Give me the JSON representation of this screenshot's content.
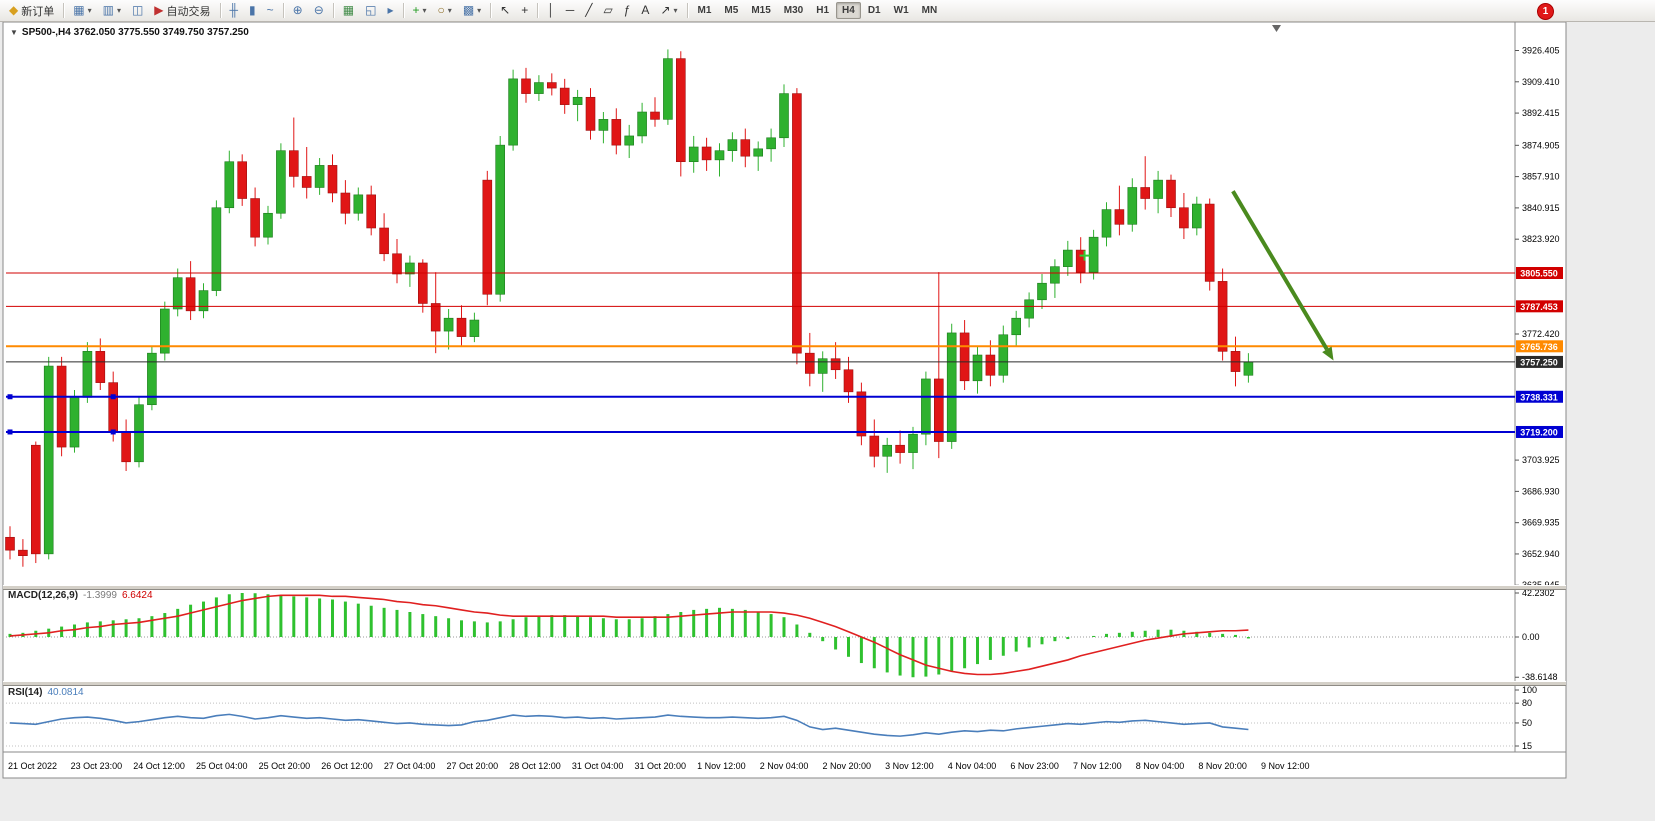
{
  "toolbar": {
    "new_order_label": "新订单",
    "autotrading_label": "自动交易",
    "timeframes": [
      "M1",
      "M5",
      "M15",
      "M30",
      "H1",
      "H4",
      "D1",
      "W1",
      "MN"
    ],
    "active_timeframe": "H4",
    "notification_badge": "1",
    "items": [
      {
        "name": "new-order-button",
        "glyph": "◆",
        "color": "#d8a020",
        "label_key": "new_order_label"
      },
      {
        "sep": true
      },
      {
        "name": "new-chart-button",
        "glyph": "▦",
        "color": "#4a74a8",
        "dd": true
      },
      {
        "name": "profiles-button",
        "glyph": "▥",
        "color": "#4a74a8",
        "dd": true
      },
      {
        "name": "data-window-button",
        "glyph": "◫",
        "color": "#4a74a8"
      },
      {
        "name": "autotrading-button",
        "glyph": "▶",
        "color": "#c03030",
        "label_key": "autotrading_label"
      },
      {
        "sep": true
      },
      {
        "name": "bar-chart-type-button",
        "glyph": "╫",
        "color": "#4a74a8"
      },
      {
        "name": "candle-chart-type-button",
        "glyph": "▮",
        "color": "#4a74a8"
      },
      {
        "name": "line-chart-type-button",
        "glyph": "~",
        "color": "#4a74a8"
      },
      {
        "sep": true
      },
      {
        "name": "zoom-in-button",
        "glyph": "⊕",
        "color": "#4a74a8"
      },
      {
        "name": "zoom-out-button",
        "glyph": "⊖",
        "color": "#4a74a8"
      },
      {
        "sep": true
      },
      {
        "name": "tile-windows-button",
        "glyph": "▦",
        "color": "#3f8a46"
      },
      {
        "name": "cascade-windows-button",
        "glyph": "◱",
        "color": "#4a74a8"
      },
      {
        "name": "chart-shift-button",
        "glyph": "▸",
        "color": "#4a74a8"
      },
      {
        "sep": true
      },
      {
        "name": "indicators-button",
        "glyph": "+",
        "color": "#1f9a1f",
        "dd": true
      },
      {
        "name": "periods-button",
        "glyph": "○",
        "color": "#8a6a22",
        "dd": true
      },
      {
        "name": "templates-button",
        "glyph": "▩",
        "color": "#4a74a8",
        "dd": true
      },
      {
        "sep": true
      },
      {
        "name": "cursor-button",
        "glyph": "↖",
        "color": "#333333"
      },
      {
        "name": "crosshair-button",
        "glyph": "+",
        "color": "#333333"
      },
      {
        "sep": true
      },
      {
        "name": "vertical-line-button",
        "glyph": "│",
        "color": "#333333"
      },
      {
        "name": "horizontal-line-button",
        "glyph": "─",
        "color": "#333333"
      },
      {
        "name": "trendline-button",
        "glyph": "╱",
        "color": "#333333"
      },
      {
        "name": "channel-button",
        "glyph": "▱",
        "color": "#333333"
      },
      {
        "name": "fibonacci-button",
        "glyph": "ƒ",
        "color": "#333333"
      },
      {
        "name": "text-label-button",
        "glyph": "A",
        "color": "#333333"
      },
      {
        "name": "arrows-tool-button",
        "glyph": "↗",
        "color": "#333333",
        "dd": true
      },
      {
        "sep": true
      }
    ]
  },
  "chart_header": {
    "collapse_arrow": "▼",
    "symbol_period": "SP500-,H4",
    "ohlc": "3762.050 3775.550 3749.750 3757.250"
  },
  "indicators": {
    "macd": {
      "label": "MACD(12,26,9)",
      "value_main": "-1.3999",
      "value_signal": "6.6424",
      "axis_values": [
        42.2302,
        0,
        -38.6148
      ],
      "axis_labels": [
        "42.2302",
        "0.00",
        "-38.6148"
      ]
    },
    "rsi": {
      "label": "RSI(14)",
      "value": "40.0814",
      "level_values": [
        100,
        80,
        50,
        15
      ],
      "level_labels": [
        "100",
        "80",
        "50",
        "15"
      ]
    }
  },
  "price_axis": {
    "ticks": [
      {
        "value": 3926.405,
        "label": "3926.405"
      },
      {
        "value": 3909.41,
        "label": "3909.410"
      },
      {
        "value": 3892.415,
        "label": "3892.415"
      },
      {
        "value": 3874.905,
        "label": "3874.905"
      },
      {
        "value": 3857.91,
        "label": "3857.910"
      },
      {
        "value": 3840.915,
        "label": "3840.915"
      },
      {
        "value": 3823.92,
        "label": "3823.920"
      },
      {
        "value": 3772.42,
        "label": "3772.420"
      },
      {
        "value": 3703.925,
        "label": "3703.925"
      },
      {
        "value": 3686.93,
        "label": "3686.930"
      },
      {
        "value": 3669.935,
        "label": "3669.935"
      },
      {
        "value": 3652.94,
        "label": "3652.940"
      },
      {
        "value": 3635.945,
        "label": "3635.945"
      }
    ]
  },
  "time_axis": {
    "labels": [
      "21 Oct 2022",
      "23 Oct 23:00",
      "24 Oct 12:00",
      "25 Oct 04:00",
      "25 Oct 20:00",
      "26 Oct 12:00",
      "27 Oct 04:00",
      "27 Oct 20:00",
      "28 Oct 12:00",
      "31 Oct 04:00",
      "31 Oct 20:00",
      "1 Nov 12:00",
      "2 Nov 04:00",
      "2 Nov 20:00",
      "3 Nov 12:00",
      "4 Nov 04:00",
      "6 Nov 23:00",
      "7 Nov 12:00",
      "8 Nov 04:00",
      "8 Nov 20:00",
      "9 Nov 12:00"
    ]
  },
  "chart_data": [
    {
      "type": "candlestick",
      "title": "SP500-,H4",
      "timeframe": "H4",
      "ylim": [
        3633,
        3940
      ],
      "up_color": "#2fb12f",
      "down_color": "#e01616",
      "ohlc": [
        [
          3662,
          3668,
          3650,
          3655
        ],
        [
          3655,
          3661,
          3646,
          3652
        ],
        [
          3712,
          3714,
          3648,
          3653
        ],
        [
          3653,
          3760,
          3650,
          3755
        ],
        [
          3755,
          3760,
          3706,
          3711
        ],
        [
          3711,
          3742,
          3708,
          3738
        ],
        [
          3738,
          3768,
          3735,
          3763
        ],
        [
          3763,
          3770,
          3742,
          3746
        ],
        [
          3746,
          3752,
          3714,
          3719
        ],
        [
          3719,
          3726,
          3698,
          3703
        ],
        [
          3703,
          3738,
          3700,
          3734
        ],
        [
          3734,
          3766,
          3731,
          3762
        ],
        [
          3762,
          3790,
          3758,
          3786
        ],
        [
          3786,
          3808,
          3782,
          3803
        ],
        [
          3803,
          3812,
          3780,
          3785
        ],
        [
          3785,
          3800,
          3781,
          3796
        ],
        [
          3796,
          3845,
          3793,
          3841
        ],
        [
          3841,
          3872,
          3838,
          3866
        ],
        [
          3866,
          3870,
          3842,
          3846
        ],
        [
          3846,
          3852,
          3820,
          3825
        ],
        [
          3825,
          3842,
          3821,
          3838
        ],
        [
          3838,
          3876,
          3835,
          3872
        ],
        [
          3872,
          3890,
          3852,
          3858
        ],
        [
          3858,
          3874,
          3846,
          3852
        ],
        [
          3852,
          3868,
          3848,
          3864
        ],
        [
          3864,
          3870,
          3844,
          3849
        ],
        [
          3849,
          3856,
          3832,
          3838
        ],
        [
          3838,
          3852,
          3834,
          3848
        ],
        [
          3848,
          3853,
          3826,
          3830
        ],
        [
          3830,
          3838,
          3812,
          3816
        ],
        [
          3816,
          3824,
          3800,
          3805
        ],
        [
          3805,
          3815,
          3798,
          3811
        ],
        [
          3811,
          3813,
          3784,
          3789
        ],
        [
          3789,
          3806,
          3762,
          3774
        ],
        [
          3774,
          3786,
          3764,
          3781
        ],
        [
          3781,
          3788,
          3766,
          3771
        ],
        [
          3771,
          3784,
          3768,
          3780
        ],
        [
          3856,
          3861,
          3788,
          3794
        ],
        [
          3794,
          3880,
          3790,
          3875
        ],
        [
          3875,
          3916,
          3872,
          3911
        ],
        [
          3911,
          3917,
          3898,
          3903
        ],
        [
          3903,
          3913,
          3899,
          3909
        ],
        [
          3909,
          3914,
          3902,
          3906
        ],
        [
          3906,
          3911,
          3892,
          3897
        ],
        [
          3897,
          3905,
          3888,
          3901
        ],
        [
          3901,
          3906,
          3878,
          3883
        ],
        [
          3883,
          3893,
          3876,
          3889
        ],
        [
          3889,
          3895,
          3870,
          3875
        ],
        [
          3875,
          3886,
          3868,
          3880
        ],
        [
          3880,
          3898,
          3876,
          3893
        ],
        [
          3893,
          3901,
          3885,
          3889
        ],
        [
          3889,
          3927,
          3886,
          3922
        ],
        [
          3922,
          3926,
          3858,
          3866
        ],
        [
          3866,
          3880,
          3860,
          3874
        ],
        [
          3874,
          3879,
          3861,
          3867
        ],
        [
          3867,
          3876,
          3858,
          3872
        ],
        [
          3872,
          3882,
          3866,
          3878
        ],
        [
          3878,
          3884,
          3863,
          3869
        ],
        [
          3869,
          3877,
          3861,
          3873
        ],
        [
          3873,
          3884,
          3866,
          3879
        ],
        [
          3879,
          3908,
          3874,
          3903
        ],
        [
          3903,
          3906,
          3756,
          3762
        ],
        [
          3762,
          3773,
          3744,
          3751
        ],
        [
          3751,
          3763,
          3741,
          3759
        ],
        [
          3759,
          3768,
          3748,
          3753
        ],
        [
          3753,
          3760,
          3735,
          3741
        ],
        [
          3741,
          3746,
          3712,
          3717
        ],
        [
          3717,
          3726,
          3700,
          3706
        ],
        [
          3706,
          3716,
          3697,
          3712
        ],
        [
          3712,
          3720,
          3702,
          3708
        ],
        [
          3708,
          3722,
          3699,
          3718
        ],
        [
          3718,
          3752,
          3712,
          3748
        ],
        [
          3748,
          3806,
          3705,
          3714
        ],
        [
          3714,
          3778,
          3710,
          3773
        ],
        [
          3773,
          3780,
          3742,
          3747
        ],
        [
          3747,
          3766,
          3740,
          3761
        ],
        [
          3761,
          3769,
          3744,
          3750
        ],
        [
          3750,
          3777,
          3746,
          3772
        ],
        [
          3772,
          3785,
          3766,
          3781
        ],
        [
          3781,
          3795,
          3776,
          3791
        ],
        [
          3791,
          3805,
          3786,
          3800
        ],
        [
          3800,
          3813,
          3792,
          3809
        ],
        [
          3809,
          3823,
          3804,
          3818
        ],
        [
          3818,
          3825,
          3800,
          3806
        ],
        [
          3806,
          3829,
          3802,
          3825
        ],
        [
          3825,
          3844,
          3820,
          3840
        ],
        [
          3840,
          3853,
          3826,
          3832
        ],
        [
          3832,
          3857,
          3828,
          3852
        ],
        [
          3852,
          3869,
          3840,
          3846
        ],
        [
          3846,
          3861,
          3838,
          3856
        ],
        [
          3856,
          3859,
          3836,
          3841
        ],
        [
          3841,
          3849,
          3824,
          3830
        ],
        [
          3830,
          3847,
          3826,
          3843
        ],
        [
          3843,
          3846,
          3796,
          3801
        ],
        [
          3801,
          3808,
          3758,
          3763
        ],
        [
          3763,
          3771,
          3744,
          3752
        ],
        [
          3750,
          3762,
          3746,
          3757.25
        ]
      ],
      "horizontal_lines": [
        {
          "price": 3805.55,
          "label": "3805.550",
          "color": "#d20000",
          "width": 1
        },
        {
          "price": 3787.453,
          "label": "3787.453",
          "color": "#d20000",
          "width": 1
        },
        {
          "price": 3765.736,
          "label": "3765.736",
          "color": "#ff8a00",
          "width": 2
        },
        {
          "price": 3757.25,
          "label": "3757.250",
          "color": "#2b2b2b",
          "width": 1,
          "current": true
        },
        {
          "price": 3738.331,
          "label": "3738.331",
          "color": "#0000d2",
          "width": 2,
          "handles": [
            0,
            8
          ]
        },
        {
          "price": 3719.2,
          "label": "3719.200",
          "color": "#0000d2",
          "width": 2,
          "handles": [
            0,
            8
          ]
        }
      ],
      "annotations": [
        {
          "type": "arrow",
          "from_bar": 94.8,
          "from_price": 3850,
          "to_bar": 102.6,
          "to_price": 3758,
          "color": "#4a8a1e"
        },
        {
          "type": "cross",
          "bar": 83.3,
          "price": 3815,
          "color": "#32cd32"
        }
      ]
    },
    {
      "type": "bar",
      "name": "MACD(12,26,9)",
      "ylim": [
        -45,
        47
      ],
      "hist_color": "#2fc12f",
      "signal_color": "#e02020",
      "values": [
        3,
        4,
        6,
        8,
        10,
        12,
        14,
        15,
        16,
        17,
        18,
        20,
        23,
        27,
        31,
        34,
        38,
        41,
        42.23,
        42,
        41,
        40,
        39,
        38,
        37,
        36,
        34,
        32,
        30,
        28,
        26,
        24,
        22,
        20,
        18,
        16,
        15,
        14,
        15,
        17,
        19,
        20,
        21,
        21,
        20,
        19,
        18,
        17,
        17,
        18,
        20,
        22,
        24,
        26,
        27,
        28,
        27,
        26,
        24,
        22,
        19,
        12,
        4,
        -4,
        -12,
        -19,
        -25,
        -30,
        -34,
        -37,
        -38.61,
        -38,
        -36,
        -33,
        -30,
        -26,
        -22,
        -18,
        -14,
        -10,
        -7,
        -4,
        -2,
        0,
        1,
        3,
        4,
        5,
        6,
        7,
        7,
        6,
        5,
        4,
        3,
        2,
        -1.3999
      ],
      "signal": [
        1,
        2,
        3,
        4,
        6,
        7,
        9,
        10,
        12,
        13,
        14,
        16,
        18,
        20,
        23,
        26,
        29,
        32,
        35,
        37,
        39,
        40,
        40,
        40,
        40,
        39,
        39,
        38,
        37,
        36,
        34,
        33,
        31,
        30,
        28,
        26,
        24,
        23,
        21,
        20,
        20,
        20,
        20,
        20,
        20,
        20,
        20,
        19,
        19,
        19,
        19,
        19,
        20,
        21,
        22,
        23,
        24,
        24,
        24,
        24,
        23,
        21,
        18,
        14,
        10,
        5,
        0,
        -5,
        -11,
        -17,
        -22,
        -27,
        -30,
        -33,
        -35,
        -36,
        -36,
        -35,
        -33,
        -31,
        -28,
        -25,
        -22,
        -18,
        -15,
        -12,
        -9,
        -6,
        -3,
        -1,
        1,
        3,
        4,
        5,
        6,
        6,
        6.6424
      ]
    },
    {
      "type": "line",
      "name": "RSI(14)",
      "ylim": [
        0,
        100
      ],
      "line_color": "#4a7ebb",
      "values": [
        50,
        49,
        48,
        52,
        56,
        58,
        59,
        57,
        54,
        50,
        52,
        55,
        58,
        60,
        58,
        57,
        61,
        63,
        60,
        56,
        58,
        61,
        59,
        57,
        58,
        56,
        54,
        55,
        53,
        51,
        49,
        50,
        48,
        47,
        46,
        47,
        52,
        54,
        58,
        62,
        60,
        61,
        60,
        58,
        59,
        57,
        58,
        56,
        57,
        58,
        59,
        62,
        60,
        59,
        58,
        58,
        59,
        58,
        57,
        58,
        60,
        54,
        44,
        40,
        42,
        39,
        36,
        33,
        31,
        30,
        32,
        35,
        33,
        36,
        38,
        37,
        39,
        38,
        41,
        43,
        45,
        47,
        49,
        48,
        50,
        52,
        51,
        53,
        54,
        52,
        50,
        48,
        49,
        50,
        44,
        42,
        40.08
      ]
    }
  ]
}
